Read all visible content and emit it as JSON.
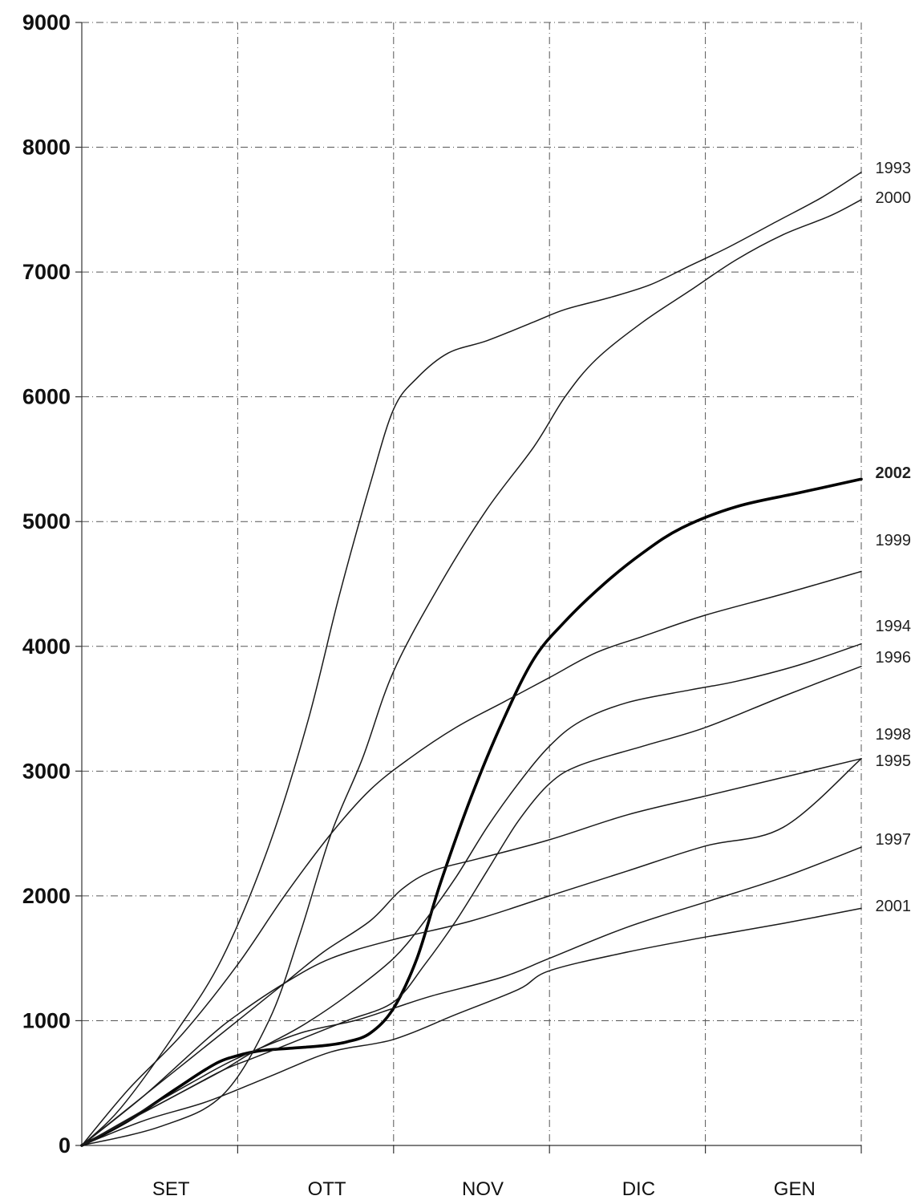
{
  "chart_data": {
    "type": "line",
    "title": "",
    "xlabel": "",
    "ylabel": "",
    "ylim": [
      0,
      9000
    ],
    "yticks": [
      0,
      1000,
      2000,
      3000,
      4000,
      5000,
      6000,
      7000,
      8000,
      9000
    ],
    "ytick_labels": [
      "0",
      "1000",
      "2000",
      "3000",
      "4000",
      "5000",
      "6000",
      "7000",
      "8000",
      "9000"
    ],
    "categories": [
      "SET",
      "OTT",
      "NOV",
      "DIC",
      "GEN"
    ],
    "x_note": "x values are month fractions since start of SET (0 = start SET, 5 = end GEN)",
    "xlim": [
      0,
      5
    ],
    "grid": true,
    "legend": "line labels at right end",
    "series": [
      {
        "name": "1993",
        "bold": false,
        "points": [
          [
            0,
            0
          ],
          [
            0.25,
            300
          ],
          [
            0.6,
            900
          ],
          [
            0.9,
            1500
          ],
          [
            1.2,
            2400
          ],
          [
            1.45,
            3400
          ],
          [
            1.65,
            4400
          ],
          [
            1.85,
            5300
          ],
          [
            2.0,
            5900
          ],
          [
            2.15,
            6150
          ],
          [
            2.35,
            6350
          ],
          [
            2.6,
            6450
          ],
          [
            2.9,
            6600
          ],
          [
            3.1,
            6700
          ],
          [
            3.4,
            6800
          ],
          [
            3.65,
            6900
          ],
          [
            3.9,
            7050
          ],
          [
            4.15,
            7200
          ],
          [
            4.45,
            7400
          ],
          [
            4.75,
            7600
          ],
          [
            5.0,
            7800
          ]
        ]
      },
      {
        "name": "2000",
        "bold": false,
        "points": [
          [
            0,
            0
          ],
          [
            0.5,
            150
          ],
          [
            0.9,
            400
          ],
          [
            1.2,
            1000
          ],
          [
            1.4,
            1700
          ],
          [
            1.6,
            2500
          ],
          [
            1.8,
            3100
          ],
          [
            2.0,
            3800
          ],
          [
            2.3,
            4500
          ],
          [
            2.6,
            5100
          ],
          [
            2.9,
            5600
          ],
          [
            3.1,
            6000
          ],
          [
            3.3,
            6300
          ],
          [
            3.6,
            6600
          ],
          [
            3.9,
            6850
          ],
          [
            4.2,
            7100
          ],
          [
            4.5,
            7300
          ],
          [
            4.8,
            7450
          ],
          [
            5.0,
            7580
          ]
        ]
      },
      {
        "name": "2002",
        "bold": true,
        "points": [
          [
            0,
            0
          ],
          [
            0.3,
            200
          ],
          [
            0.6,
            450
          ],
          [
            0.85,
            650
          ],
          [
            1.0,
            720
          ],
          [
            1.15,
            760
          ],
          [
            1.35,
            780
          ],
          [
            1.55,
            800
          ],
          [
            1.7,
            830
          ],
          [
            1.85,
            900
          ],
          [
            2.0,
            1100
          ],
          [
            2.15,
            1500
          ],
          [
            2.3,
            2100
          ],
          [
            2.5,
            2800
          ],
          [
            2.7,
            3400
          ],
          [
            2.9,
            3900
          ],
          [
            3.1,
            4200
          ],
          [
            3.35,
            4500
          ],
          [
            3.6,
            4750
          ],
          [
            3.85,
            4950
          ],
          [
            4.2,
            5120
          ],
          [
            4.6,
            5230
          ],
          [
            5.0,
            5340
          ]
        ]
      },
      {
        "name": "1999",
        "bold": false,
        "points": [
          [
            0,
            0
          ],
          [
            0.3,
            450
          ],
          [
            0.65,
            900
          ],
          [
            1.0,
            1450
          ],
          [
            1.3,
            2000
          ],
          [
            1.6,
            2500
          ],
          [
            1.85,
            2850
          ],
          [
            2.1,
            3100
          ],
          [
            2.4,
            3350
          ],
          [
            2.7,
            3550
          ],
          [
            3.0,
            3750
          ],
          [
            3.3,
            3950
          ],
          [
            3.6,
            4080
          ],
          [
            4.0,
            4250
          ],
          [
            4.5,
            4420
          ],
          [
            5.0,
            4600
          ]
        ]
      },
      {
        "name": "1994",
        "bold": false,
        "points": [
          [
            0,
            0
          ],
          [
            0.3,
            200
          ],
          [
            0.6,
            400
          ],
          [
            0.9,
            600
          ],
          [
            1.1,
            750
          ],
          [
            1.4,
            950
          ],
          [
            1.7,
            1200
          ],
          [
            2.0,
            1500
          ],
          [
            2.2,
            1800
          ],
          [
            2.4,
            2150
          ],
          [
            2.6,
            2550
          ],
          [
            2.8,
            2900
          ],
          [
            3.0,
            3200
          ],
          [
            3.2,
            3400
          ],
          [
            3.5,
            3550
          ],
          [
            3.9,
            3650
          ],
          [
            4.2,
            3720
          ],
          [
            4.6,
            3850
          ],
          [
            5.0,
            4020
          ]
        ]
      },
      {
        "name": "1996",
        "bold": false,
        "points": [
          [
            0,
            0
          ],
          [
            0.3,
            200
          ],
          [
            0.6,
            400
          ],
          [
            0.9,
            600
          ],
          [
            1.1,
            700
          ],
          [
            1.4,
            850
          ],
          [
            1.7,
            1000
          ],
          [
            2.0,
            1150
          ],
          [
            2.2,
            1450
          ],
          [
            2.4,
            1800
          ],
          [
            2.6,
            2200
          ],
          [
            2.8,
            2600
          ],
          [
            3.0,
            2900
          ],
          [
            3.2,
            3050
          ],
          [
            3.6,
            3200
          ],
          [
            4.0,
            3350
          ],
          [
            4.5,
            3600
          ],
          [
            5.0,
            3840
          ]
        ]
      },
      {
        "name": "1998",
        "bold": false,
        "points": [
          [
            0,
            0
          ],
          [
            0.4,
            400
          ],
          [
            0.8,
            850
          ],
          [
            1.0,
            1050
          ],
          [
            1.3,
            1300
          ],
          [
            1.6,
            1500
          ],
          [
            2.0,
            1650
          ],
          [
            2.5,
            1800
          ],
          [
            3.0,
            2000
          ],
          [
            3.5,
            2200
          ],
          [
            4.0,
            2400
          ],
          [
            4.5,
            2550
          ],
          [
            5.0,
            3100
          ]
        ]
      },
      {
        "name": "1995",
        "bold": false,
        "points": [
          [
            0,
            0
          ],
          [
            0.3,
            300
          ],
          [
            0.6,
            600
          ],
          [
            0.9,
            900
          ],
          [
            1.1,
            1100
          ],
          [
            1.3,
            1300
          ],
          [
            1.55,
            1550
          ],
          [
            1.85,
            1800
          ],
          [
            2.05,
            2050
          ],
          [
            2.25,
            2200
          ],
          [
            2.55,
            2300
          ],
          [
            3.0,
            2450
          ],
          [
            3.5,
            2650
          ],
          [
            4.0,
            2800
          ],
          [
            4.5,
            2950
          ],
          [
            5.0,
            3100
          ]
        ]
      },
      {
        "name": "1997",
        "bold": false,
        "points": [
          [
            0,
            0
          ],
          [
            0.35,
            250
          ],
          [
            0.7,
            500
          ],
          [
            1.0,
            700
          ],
          [
            1.4,
            900
          ],
          [
            1.75,
            1000
          ],
          [
            2.0,
            1100
          ],
          [
            2.25,
            1200
          ],
          [
            2.7,
            1350
          ],
          [
            3.0,
            1500
          ],
          [
            3.5,
            1750
          ],
          [
            4.0,
            1950
          ],
          [
            4.5,
            2150
          ],
          [
            5.0,
            2390
          ]
        ]
      },
      {
        "name": "2001",
        "bold": false,
        "points": [
          [
            0,
            0
          ],
          [
            0.4,
            200
          ],
          [
            0.8,
            350
          ],
          [
            1.2,
            550
          ],
          [
            1.6,
            750
          ],
          [
            2.0,
            850
          ],
          [
            2.4,
            1050
          ],
          [
            2.8,
            1250
          ],
          [
            3.0,
            1400
          ],
          [
            3.5,
            1550
          ],
          [
            4.0,
            1670
          ],
          [
            4.5,
            1780
          ],
          [
            5.0,
            1900
          ]
        ]
      }
    ],
    "label_offsets_note": "labels placed at right end of each line"
  }
}
